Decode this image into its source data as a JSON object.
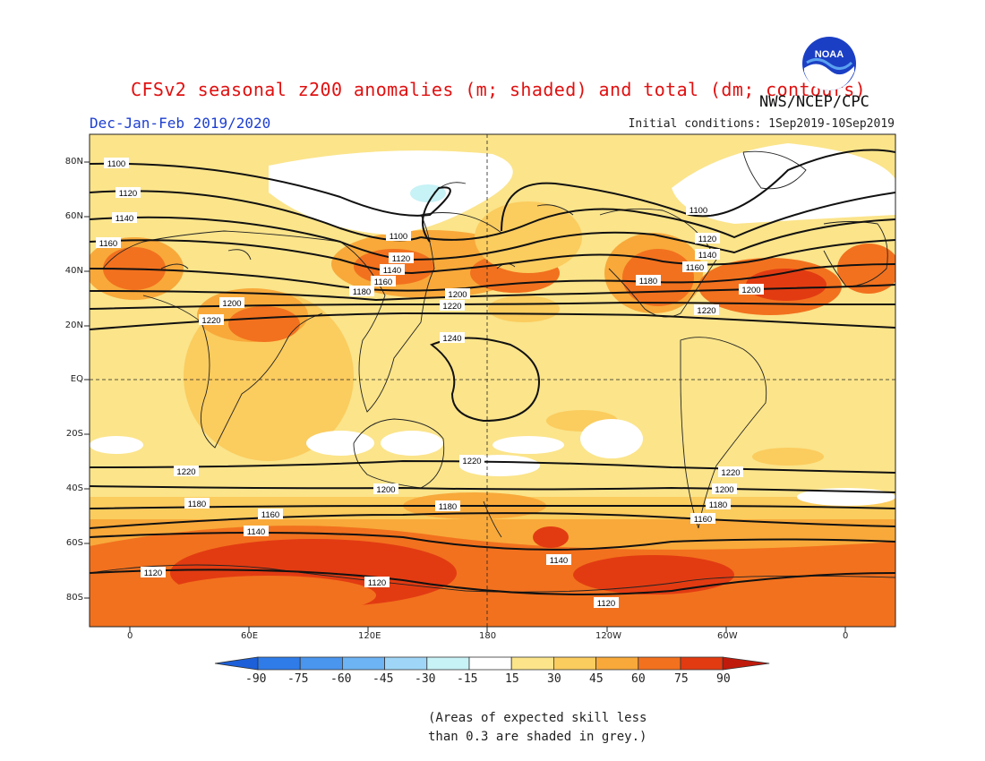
{
  "title": "CFSv2 seasonal z200 anomalies (m; shaded) and total (dm; contours)",
  "organization": "NWS/NCEP/CPC",
  "logo_text": "NOAA",
  "season": "Dec-Jan-Feb 2019/2020",
  "initial_conditions": "Initial conditions: 1Sep2019-10Sep2019",
  "lat_labels": [
    "80N",
    "60N",
    "40N",
    "20N",
    "EQ",
    "20S",
    "40S",
    "60S",
    "80S"
  ],
  "lon_labels": [
    "0",
    "60E",
    "120E",
    "180",
    "120W",
    "60W",
    "0"
  ],
  "colorbar": {
    "labels": [
      "-90",
      "-75",
      "-60",
      "-45",
      "-30",
      "-15",
      "15",
      "30",
      "45",
      "60",
      "75",
      "90"
    ],
    "colors": [
      "#1c5fd8",
      "#2f7be8",
      "#4a95ee",
      "#6db4f4",
      "#9fd6f7",
      "#c7f2f6",
      "#ffffff",
      "#fbe48a",
      "#fbcc5e",
      "#f8a93a",
      "#f2711e",
      "#e23b12",
      "#c01a0c"
    ]
  },
  "contour_labels": [
    "1100",
    "1120",
    "1140",
    "1160",
    "1180",
    "1200",
    "1220",
    "1240"
  ],
  "note_line1": "(Areas of expected skill less",
  "note_line2": "than 0.3 are shaded in grey.)"
}
